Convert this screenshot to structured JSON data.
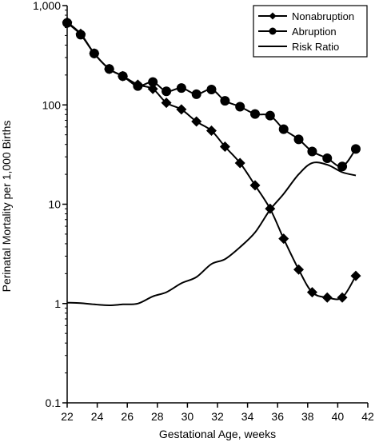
{
  "chart_data": {
    "type": "line",
    "title": "",
    "xlabel": "Gestational Age, weeks",
    "ylabel": "Perinatal Mortality per 1,000 Births",
    "xlim": [
      22,
      42
    ],
    "ylim": [
      0.1,
      1000
    ],
    "y_scale": "log",
    "grid": false,
    "legend_position": "top-right",
    "x_ticks": [
      22,
      24,
      26,
      28,
      30,
      32,
      34,
      36,
      38,
      40,
      42
    ],
    "x_tick_labels": [
      "22",
      "24",
      "26",
      "28",
      "30",
      "32",
      "34",
      "36",
      "38",
      "40",
      "42"
    ],
    "y_ticks": [
      0.1,
      1,
      10,
      100,
      1000
    ],
    "y_tick_labels": [
      "0.1",
      "1",
      "10",
      "100",
      "1,000"
    ],
    "series": [
      {
        "name": "Nonabruption",
        "marker": "diamond",
        "color": "#000000",
        "x": [
          22,
          22.9,
          23.8,
          24.8,
          25.7,
          26.7,
          27.7,
          28.6,
          29.6,
          30.6,
          31.6,
          32.5,
          33.5,
          34.5,
          35.5,
          36.4,
          37.4,
          38.3,
          39.3,
          40.3,
          41.2
        ],
        "y": [
          680,
          520,
          330,
          230,
          195,
          160,
          145,
          105,
          90,
          68,
          55,
          38,
          26,
          15.5,
          9,
          4.5,
          2.2,
          1.3,
          1.15,
          1.15,
          1.9
        ]
      },
      {
        "name": "Abruption",
        "marker": "circle",
        "color": "#000000",
        "x": [
          22,
          22.9,
          23.8,
          24.8,
          25.7,
          26.7,
          27.7,
          28.6,
          29.6,
          30.6,
          31.6,
          32.5,
          33.5,
          34.5,
          35.5,
          36.4,
          37.4,
          38.3,
          39.3,
          40.3,
          41.2
        ],
        "y": [
          670,
          510,
          330,
          230,
          195,
          155,
          170,
          137,
          148,
          128,
          143,
          110,
          96,
          81,
          78,
          57,
          45,
          34,
          29,
          24,
          36
        ]
      },
      {
        "name": "Risk Ratio",
        "marker": "none",
        "color": "#000000",
        "x": [
          22,
          22.9,
          23.8,
          24.8,
          25.7,
          26.7,
          27.7,
          28.6,
          29.6,
          30.6,
          31.6,
          32.5,
          33.5,
          34.5,
          35.5,
          36.4,
          37.4,
          38.3,
          39.3,
          40.3,
          41.2
        ],
        "y": [
          1.02,
          1.01,
          0.98,
          0.96,
          0.98,
          1.0,
          1.18,
          1.3,
          1.6,
          1.85,
          2.5,
          2.8,
          3.7,
          5.2,
          8.8,
          12.7,
          20,
          26,
          25,
          21,
          19.5
        ]
      }
    ]
  }
}
